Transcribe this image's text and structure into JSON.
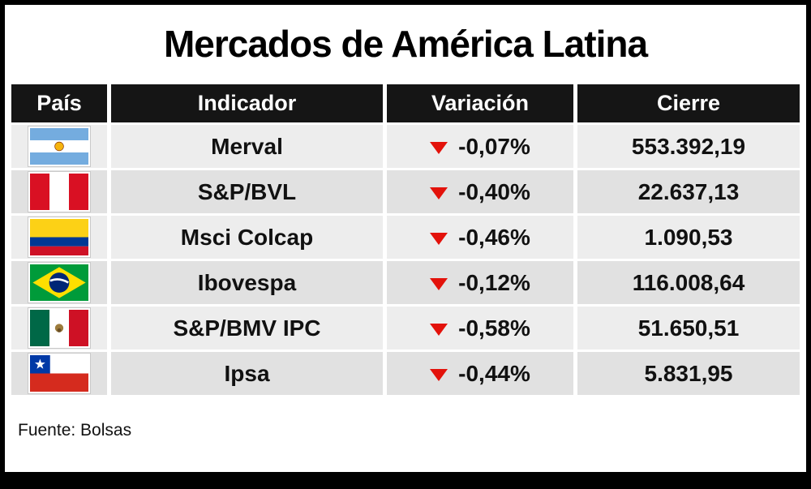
{
  "title": "Mercados de América Latina",
  "source": "Fuente: Bolsas",
  "colors": {
    "header_bg": "#151515",
    "header_text": "#ffffff",
    "row_light": "#ededed",
    "row_dark": "#e1e1e1",
    "down_arrow": "#e3120b",
    "frame": "#000000"
  },
  "chart_data": {
    "type": "table",
    "title": "Mercados de América Latina",
    "columns": [
      "País",
      "Indicador",
      "Variación",
      "Cierre"
    ],
    "rows": [
      {
        "country": "Argentina",
        "flag_icon": "flag-argentina-icon",
        "indicator": "Merval",
        "direction": "down",
        "variation": "-0,07%",
        "close": "553.392,19"
      },
      {
        "country": "Peru",
        "flag_icon": "flag-peru-icon",
        "indicator": "S&P/BVL",
        "direction": "down",
        "variation": "-0,40%",
        "close": "22.637,13"
      },
      {
        "country": "Colombia",
        "flag_icon": "flag-colombia-icon",
        "indicator": "Msci Colcap",
        "direction": "down",
        "variation": "-0,46%",
        "close": "1.090,53"
      },
      {
        "country": "Brazil",
        "flag_icon": "flag-brazil-icon",
        "indicator": "Ibovespa",
        "direction": "down",
        "variation": "-0,12%",
        "close": "116.008,64"
      },
      {
        "country": "Mexico",
        "flag_icon": "flag-mexico-icon",
        "indicator": "S&P/BMV IPC",
        "direction": "down",
        "variation": "-0,58%",
        "close": "51.650,51"
      },
      {
        "country": "Chile",
        "flag_icon": "flag-chile-icon",
        "indicator": "Ipsa",
        "direction": "down",
        "variation": "-0,44%",
        "close": "5.831,95"
      }
    ],
    "source": "Fuente: Bolsas"
  }
}
